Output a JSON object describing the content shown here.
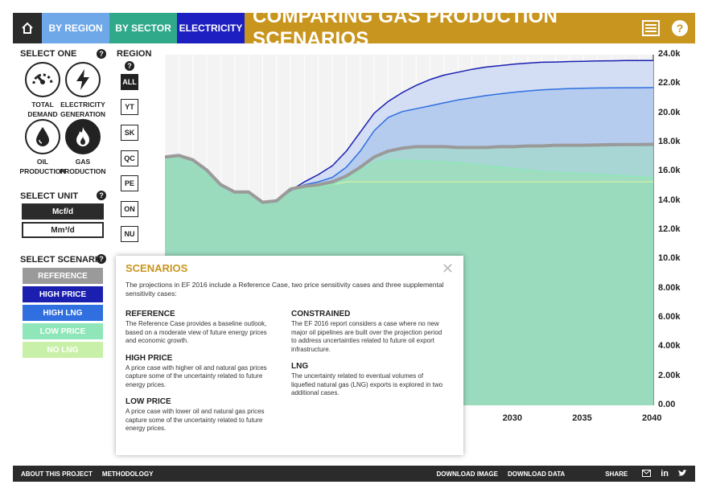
{
  "nav": {
    "by_region": "BY REGION",
    "by_sector": "BY SECTOR",
    "electricity": "ELECTRICITY",
    "title": "COMPARING GAS PRODUCTION SCENARIOS"
  },
  "select_one": {
    "label": "SELECT ONE",
    "items": [
      {
        "line1": "TOTAL",
        "line2": "DEMAND"
      },
      {
        "line1": "ELECTRICITY",
        "line2": "GENERATION"
      },
      {
        "line1": "OIL",
        "line2": "PRODUCTION"
      },
      {
        "line1": "GAS",
        "line2": "PRODUCTION"
      }
    ]
  },
  "region": {
    "label": "REGION",
    "items": [
      "ALL",
      "YT",
      "SK",
      "QC",
      "PE",
      "ON",
      "NU"
    ]
  },
  "unit": {
    "label": "SELECT UNIT",
    "options": [
      "Mcf/d",
      "Mm³/d"
    ]
  },
  "scenario": {
    "label": "SELECT SCENARIO",
    "options": [
      "REFERENCE",
      "HIGH PRICE",
      "HIGH LNG",
      "LOW PRICE",
      "NO LNG"
    ],
    "colors": [
      "#9a9a9a",
      "#1a1fb0",
      "#2f6fe0",
      "#8fe6b8",
      "#c9f0a8"
    ]
  },
  "popup": {
    "title": "SCENARIOS",
    "intro": "The projections in EF 2016 include a Reference Case, two price sensitivity cases and three supplemental sensitivity cases:",
    "reference_h": "REFERENCE",
    "reference_p": "The Reference Case provides a baseline outlook, based on a moderate view of future energy prices and economic growth.",
    "high_h": "HIGH PRICE",
    "high_p": "A price case with higher oil and natural gas prices capture some of the uncertainty related to future energy prices.",
    "low_h": "LOW PRICE",
    "low_p": "A price case with lower oil and natural gas prices capture some of the uncertainty related to future energy prices.",
    "constrained_h": "CONSTRAINED",
    "constrained_p": "The EF 2016 report considers a case where no new major oil pipelines are built over the projection period to address uncertainties related to future oil export infrastructure.",
    "lng_h": "LNG",
    "lng_p": "The uncertainty related to eventual volumes of liquefied natural gas (LNG) exports is explored in two additional cases."
  },
  "chart_data": {
    "type": "area",
    "x": [
      2005,
      2006,
      2007,
      2008,
      2009,
      2010,
      2011,
      2012,
      2013,
      2014,
      2015,
      2016,
      2017,
      2018,
      2019,
      2020,
      2021,
      2022,
      2023,
      2024,
      2025,
      2026,
      2027,
      2028,
      2029,
      2030,
      2031,
      2032,
      2033,
      2034,
      2035,
      2036,
      2037,
      2038,
      2039,
      2040
    ],
    "xlim": [
      2005,
      2040
    ],
    "ylim": [
      0,
      24000
    ],
    "yticks": [
      "0.00",
      "2.00k",
      "4.00k",
      "6.00k",
      "8.00k",
      "10.0k",
      "12.0k",
      "14.0k",
      "16.0k",
      "18.0k",
      "20.0k",
      "22.0k",
      "24.0k"
    ],
    "xticks": [
      "2030",
      "2035",
      "2040"
    ],
    "series": [
      {
        "name": "HIGH PRICE",
        "color": "#1a1fb0",
        "values": [
          17000,
          17100,
          16800,
          16100,
          15100,
          14600,
          14600,
          13900,
          14000,
          14700,
          15300,
          15800,
          16400,
          17400,
          18700,
          20000,
          20800,
          21400,
          21900,
          22300,
          22600,
          22800,
          23000,
          23150,
          23250,
          23350,
          23420,
          23480,
          23500,
          23530,
          23550,
          23570,
          23580,
          23600,
          23600,
          23600
        ]
      },
      {
        "name": "HIGH LNG",
        "color": "#2f6fe0",
        "values": [
          17000,
          17100,
          16800,
          16100,
          15100,
          14600,
          14600,
          13900,
          14000,
          14700,
          15100,
          15300,
          15600,
          16300,
          17400,
          18800,
          19700,
          20100,
          20300,
          20500,
          20700,
          20900,
          21050,
          21200,
          21320,
          21430,
          21520,
          21590,
          21640,
          21680,
          21700,
          21720,
          21730,
          21740,
          21740,
          21750
        ]
      },
      {
        "name": "REFERENCE",
        "color": "#9a9a9a",
        "values": [
          17000,
          17100,
          16800,
          16100,
          15100,
          14600,
          14600,
          13900,
          14000,
          14800,
          15000,
          15100,
          15300,
          15700,
          16300,
          17000,
          17400,
          17600,
          17700,
          17700,
          17700,
          17650,
          17650,
          17650,
          17700,
          17700,
          17750,
          17750,
          17800,
          17800,
          17800,
          17820,
          17840,
          17850,
          17850,
          17860
        ]
      },
      {
        "name": "LOW PRICE",
        "color": "#8fe6b8",
        "values": [
          17000,
          17100,
          16800,
          16100,
          15100,
          14600,
          14600,
          13900,
          14000,
          14700,
          15000,
          15000,
          15100,
          15500,
          16100,
          16600,
          16800,
          16800,
          16750,
          16700,
          16650,
          16600,
          16500,
          16400,
          16300,
          16200,
          16100,
          16000,
          15950,
          15900,
          15850,
          15800,
          15750,
          15700,
          15650,
          15600
        ]
      },
      {
        "name": "NO LNG",
        "color": "#c9f0a8",
        "values": [
          17000,
          17100,
          16800,
          16100,
          15100,
          14600,
          14600,
          13900,
          14000,
          14700,
          15000,
          15000,
          15100,
          15300,
          15300,
          15300,
          15300,
          15300,
          15300,
          15300,
          15300,
          15300,
          15300,
          15300,
          15300,
          15300,
          15300,
          15300,
          15300,
          15300,
          15300,
          15300,
          15300,
          15300,
          15300,
          15300
        ]
      }
    ]
  },
  "footer": {
    "about": "ABOUT THIS PROJECT",
    "methodology": "METHODOLOGY",
    "download_image": "DOWNLOAD IMAGE",
    "download_data": "DOWNLOAD DATA",
    "share": "SHARE",
    "linkedin": "in"
  }
}
